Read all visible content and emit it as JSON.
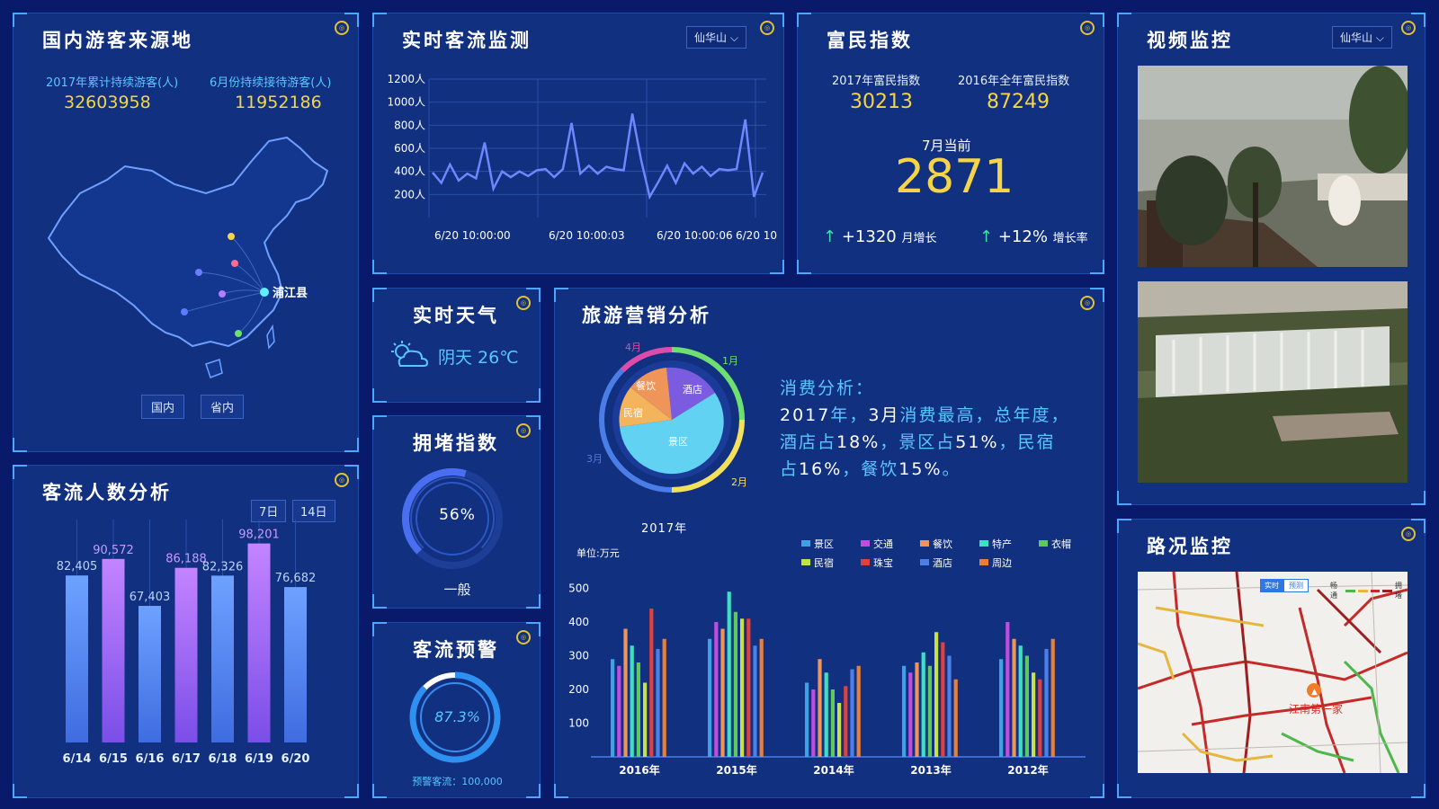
{
  "origin": {
    "title": "国内游客来源地",
    "stat1_label": "2017年累计持续游客(人)",
    "stat1_value": "32603958",
    "stat2_label": "6月份持续接待游客(人)",
    "stat2_value": "11952186",
    "city_label": "浦江县",
    "btn_domestic": "国内",
    "btn_province": "省内"
  },
  "flow": {
    "title": "客流人数分析",
    "btn_7": "7日",
    "btn_14": "14日",
    "chart_data": {
      "type": "bar",
      "categories": [
        "6/14",
        "6/15",
        "6/16",
        "6/17",
        "6/18",
        "6/19",
        "6/20"
      ],
      "values": [
        82405,
        90572,
        67403,
        86188,
        82326,
        98201,
        76682
      ],
      "value_labels": [
        "82,405",
        "90,572",
        "67,403",
        "86,188",
        "82,326",
        "98,201",
        "76,682"
      ]
    }
  },
  "realtime": {
    "title": "实时客流监测",
    "dropdown": "仙华山",
    "chart_data": {
      "type": "line",
      "y_tick_labels": [
        "1200人",
        "1000人",
        "800人",
        "600人",
        "400人",
        "200人"
      ],
      "x_tick_labels": [
        "6/20 10:00:00",
        "6/20 10:00:03",
        "6/20 10:00:06",
        "6/20 10"
      ],
      "ylim": [
        0,
        1200
      ],
      "values": [
        390,
        300,
        460,
        320,
        380,
        340,
        650,
        250,
        400,
        350,
        400,
        360,
        410,
        420,
        350,
        420,
        820,
        380,
        450,
        380,
        440,
        420,
        410,
        900,
        500,
        180,
        310,
        450,
        300,
        470,
        380,
        440,
        360,
        420,
        410,
        420,
        850,
        180,
        390
      ]
    }
  },
  "rich": {
    "title": "富民指数",
    "label_2017": "2017年富民指数",
    "value_2017": "30213",
    "label_2016": "2016年全年富民指数",
    "value_2016": "87249",
    "current_label": "7月当前",
    "current_value": "2871",
    "growth1_arrow": "↑",
    "growth1_value": "+1320",
    "growth1_label": "月增长",
    "growth2_arrow": "↑",
    "growth2_value": "+12%",
    "growth2_label": "增长率"
  },
  "video": {
    "title": "视频监控",
    "dropdown": "仙华山"
  },
  "weather": {
    "title": "实时天气",
    "text": "阴天  26℃"
  },
  "congestion": {
    "title": "拥堵指数",
    "value": "56%",
    "level": "一般",
    "fraction": 0.56
  },
  "warning": {
    "title": "客流预警",
    "value": "87.3%",
    "fraction": 0.873,
    "footer": "预警客流：100,000"
  },
  "marketing": {
    "title": "旅游营销分析",
    "donut_year": "2017年",
    "months": [
      "4月",
      "1月",
      "3月",
      "2月"
    ],
    "pie_labels": [
      "餐饮",
      "酒店",
      "民宿",
      "景区"
    ],
    "analysis_heading": "消费分析：",
    "analysis_line1_a": "2017",
    "analysis_line1_b": "年，",
    "analysis_line1_c": "3月",
    "analysis_line1_d": "消费最高，总年度，",
    "analysis_line2_a": "酒店占",
    "analysis_line2_b": "18%",
    "analysis_line2_c": "，景区占",
    "analysis_line2_d": "51%",
    "analysis_line2_e": "，民宿",
    "analysis_line3_a": "占",
    "analysis_line3_b": "16%",
    "analysis_line3_c": "，餐饮",
    "analysis_line3_d": "15%",
    "analysis_line3_e": "。",
    "unit": "单位:万元",
    "chart_data": {
      "type": "bar",
      "categories": [
        "2016年",
        "2015年",
        "2014年",
        "2013年",
        "2012年"
      ],
      "y_ticks": [
        100,
        200,
        300,
        400,
        500
      ],
      "ylim": [
        0,
        500
      ],
      "series": [
        {
          "name": "景区",
          "color": "#3fa2e6",
          "values": [
            290,
            350,
            220,
            270,
            290
          ]
        },
        {
          "name": "交通",
          "color": "#c04ce0",
          "values": [
            270,
            400,
            200,
            250,
            400
          ]
        },
        {
          "name": "餐饮",
          "color": "#f0955a",
          "values": [
            380,
            380,
            290,
            280,
            350
          ]
        },
        {
          "name": "特产",
          "color": "#3ee0c2",
          "values": [
            330,
            490,
            250,
            310,
            330
          ]
        },
        {
          "name": "衣帽",
          "color": "#5ec95e",
          "values": [
            280,
            430,
            200,
            270,
            300
          ]
        },
        {
          "name": "民宿",
          "color": "#c6e04a",
          "values": [
            220,
            410,
            160,
            370,
            250
          ]
        },
        {
          "name": "珠宝",
          "color": "#e0403e",
          "values": [
            440,
            410,
            210,
            340,
            230
          ]
        },
        {
          "name": "酒店",
          "color": "#4c80e6",
          "values": [
            320,
            330,
            260,
            300,
            320
          ]
        },
        {
          "name": "周边",
          "color": "#e87f3a",
          "values": [
            350,
            350,
            270,
            230,
            350
          ]
        }
      ]
    }
  },
  "traffic": {
    "title": "路况监控",
    "tab_realtime": "实时",
    "tab_forecast": "预测",
    "legend_smooth": "畅通",
    "legend_jam": "拥堵",
    "place": "江南第一家"
  },
  "colors": {
    "accent": "#4da6ff",
    "yellow": "#f5d547",
    "panel": "#11307f",
    "background": "#0a1a6b"
  }
}
